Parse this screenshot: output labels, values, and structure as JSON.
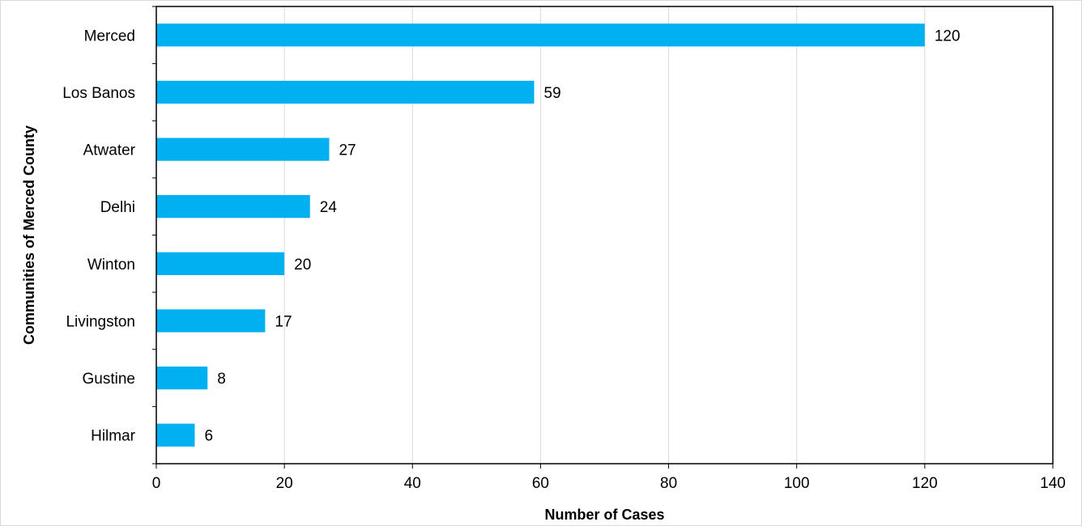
{
  "chart_data": {
    "type": "bar",
    "orientation": "horizontal",
    "categories": [
      "Merced",
      "Los Banos",
      "Atwater",
      "Delhi",
      "Winton",
      "Livingston",
      "Gustine",
      "Hilmar"
    ],
    "values": [
      120,
      59,
      27,
      24,
      20,
      17,
      8,
      6
    ],
    "xlabel": "Number of Cases",
    "ylabel": "Communities of Merced County",
    "xlim": [
      0,
      140
    ],
    "xticks": [
      0,
      20,
      40,
      60,
      80,
      100,
      120,
      140
    ],
    "grid": "vertical",
    "legend": "none",
    "bar_color": "#00B0F0",
    "gridline_color": "#D9D9D9",
    "axis_color": "#000000"
  }
}
